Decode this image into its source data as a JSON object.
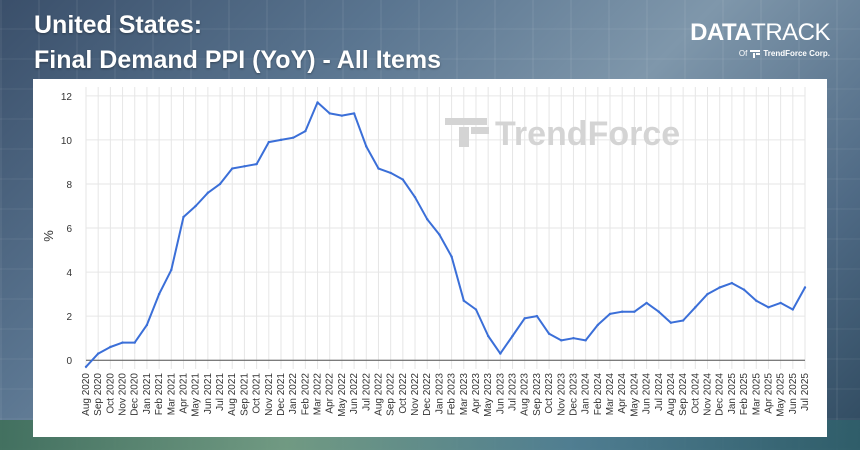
{
  "header": {
    "title_line1": "United States:",
    "title_line2": "Final Demand PPI (YoY) - All Items"
  },
  "brand": {
    "logo_bold": "DATA",
    "logo_light": "TRACK",
    "sub_prefix": "Of",
    "sub_name": "TrendForce Corp."
  },
  "watermark": "TrendForce",
  "colors": {
    "line": "#3b6fd8",
    "grid": "#e6e6e6",
    "panel": "#ffffff",
    "title": "#ffffff"
  },
  "chart_data": {
    "type": "line",
    "title": "Final Demand PPI (YoY) - All Items",
    "xlabel": "",
    "ylabel": "%",
    "ylim": [
      -0.4,
      12.4
    ],
    "yticks": [
      0,
      2,
      4,
      6,
      8,
      10,
      12
    ],
    "grid": true,
    "categories": [
      "Aug 2020",
      "Sep 2020",
      "Oct 2020",
      "Nov 2020",
      "Dec 2020",
      "Jan 2021",
      "Feb 2021",
      "Mar 2021",
      "Apr 2021",
      "May 2021",
      "Jun 2021",
      "Jul 2021",
      "Aug 2021",
      "Sep 2021",
      "Oct 2021",
      "Nov 2021",
      "Dec 2021",
      "Jan 2022",
      "Feb 2022",
      "Mar 2022",
      "Apr 2022",
      "May 2022",
      "Jun 2022",
      "Jul 2022",
      "Aug 2022",
      "Sep 2022",
      "Oct 2022",
      "Nov 2022",
      "Dec 2022",
      "Jan 2023",
      "Feb 2023",
      "Mar 2023",
      "Apr 2023",
      "May 2023",
      "Jun 2023",
      "Jul 2023",
      "Aug 2023",
      "Sep 2023",
      "Oct 2023",
      "Nov 2023",
      "Dec 2023",
      "Jan 2024",
      "Feb 2024",
      "Mar 2024",
      "Apr 2024",
      "May 2024",
      "Jun 2024",
      "Jul 2024",
      "Aug 2024",
      "Sep 2024",
      "Oct 2024",
      "Nov 2024",
      "Dec 2024",
      "Jan 2025",
      "Feb 2025",
      "Mar 2025",
      "Apr 2025",
      "May 2025",
      "Jun 2025",
      "Jul 2025"
    ],
    "series": [
      {
        "values": [
          -0.3,
          0.3,
          0.6,
          0.8,
          0.8,
          1.6,
          3.0,
          4.1,
          6.5,
          7.0,
          7.6,
          8.0,
          8.7,
          8.8,
          8.9,
          9.9,
          10.0,
          10.1,
          10.4,
          11.7,
          11.2,
          11.1,
          11.2,
          9.7,
          8.7,
          8.5,
          8.2,
          7.4,
          6.4,
          5.7,
          4.7,
          2.7,
          2.3,
          1.1,
          0.3,
          1.1,
          1.9,
          2.0,
          1.2,
          0.9,
          1.0,
          0.9,
          1.6,
          2.1,
          2.2,
          2.2,
          2.6,
          2.2,
          1.7,
          1.8,
          2.4,
          3.0,
          3.3,
          3.5,
          3.2,
          2.7,
          2.4,
          2.6,
          2.3,
          3.3
        ]
      }
    ]
  }
}
